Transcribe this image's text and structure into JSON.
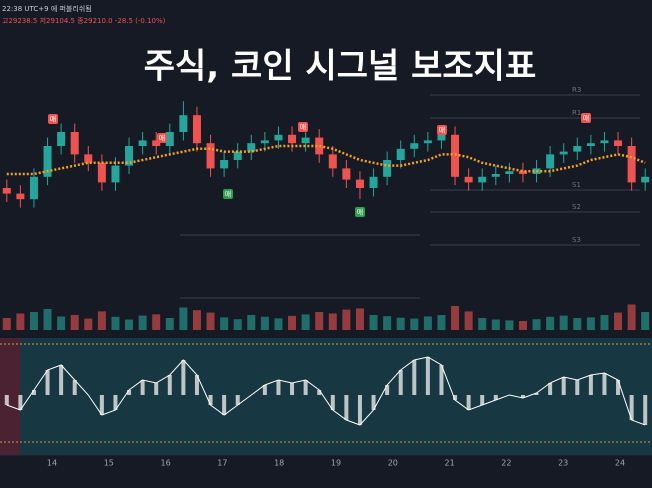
{
  "chart_data": {
    "type": "candlestick",
    "title": "주식, 코인 시그널 보조지표",
    "header": "22:38 UTC+9 에 퍼블리쉬됨",
    "ohlc_info": "고29238.5 저29104.5 종29210.0 -28.5 (-0.10%)",
    "categories": [
      "14",
      "15",
      "16",
      "17",
      "18",
      "19",
      "20",
      "21",
      "22",
      "23",
      "24"
    ],
    "level_labels": [
      "R3",
      "R1",
      "S1",
      "S2",
      "S3"
    ],
    "signal_labels": {
      "sell": "매",
      "buy": "매"
    },
    "ylim": [
      0,
      100
    ],
    "up_color": "#26a69a",
    "down_color": "#ef5350",
    "ma_color": "#f7a21b",
    "open": [
      40,
      38,
      36,
      44,
      55,
      60,
      52,
      49,
      42,
      48,
      55,
      57,
      55,
      60,
      66,
      56,
      47,
      50,
      53,
      56,
      57,
      59,
      56,
      58,
      52,
      47,
      43,
      40,
      44,
      50,
      54,
      56,
      57,
      59,
      44,
      42,
      44,
      45,
      46,
      45,
      47,
      52,
      53,
      55,
      56,
      57,
      55,
      42
    ],
    "high": [
      43,
      41,
      47,
      58,
      63,
      63,
      55,
      52,
      51,
      58,
      60,
      60,
      63,
      71,
      69,
      59,
      53,
      56,
      59,
      60,
      62,
      62,
      61,
      61,
      55,
      50,
      46,
      47,
      53,
      57,
      59,
      60,
      62,
      62,
      47,
      47,
      48,
      49,
      49,
      50,
      55,
      56,
      58,
      59,
      60,
      60,
      58,
      47
    ],
    "low": [
      35,
      33,
      33,
      41,
      52,
      49,
      46,
      39,
      39,
      45,
      52,
      52,
      52,
      57,
      53,
      44,
      44,
      47,
      50,
      53,
      54,
      53,
      53,
      49,
      44,
      40,
      36,
      37,
      41,
      47,
      51,
      53,
      54,
      41,
      39,
      39,
      41,
      42,
      42,
      42,
      44,
      49,
      50,
      52,
      53,
      52,
      39,
      39
    ],
    "close": [
      38,
      36,
      44,
      55,
      60,
      52,
      49,
      42,
      48,
      55,
      57,
      55,
      60,
      66,
      56,
      47,
      50,
      53,
      56,
      57,
      59,
      56,
      58,
      52,
      47,
      43,
      40,
      44,
      50,
      54,
      56,
      57,
      59,
      44,
      42,
      44,
      45,
      46,
      45,
      47,
      52,
      53,
      55,
      56,
      57,
      55,
      42,
      44
    ],
    "ma": [
      45,
      45,
      45,
      46,
      47,
      48,
      49,
      49,
      49,
      49,
      50,
      51,
      52,
      53,
      54,
      54,
      53,
      53,
      53,
      54,
      55,
      55,
      55,
      55,
      54,
      52,
      50,
      49,
      48,
      48,
      49,
      50,
      52,
      52,
      51,
      49,
      48,
      47,
      46,
      46,
      46,
      47,
      48,
      50,
      51,
      52,
      51,
      49
    ],
    "volume": [
      40,
      55,
      60,
      70,
      45,
      50,
      38,
      62,
      44,
      35,
      48,
      52,
      40,
      75,
      66,
      58,
      42,
      36,
      50,
      44,
      39,
      47,
      52,
      60,
      55,
      68,
      72,
      50,
      46,
      41,
      38,
      45,
      50,
      80,
      62,
      40,
      35,
      32,
      30,
      36,
      44,
      48,
      40,
      42,
      50,
      58,
      85,
      60
    ],
    "oscillator": [
      -10,
      -15,
      5,
      25,
      30,
      15,
      0,
      -20,
      -15,
      5,
      15,
      12,
      20,
      35,
      20,
      -10,
      -20,
      -10,
      0,
      10,
      15,
      12,
      15,
      5,
      -15,
      -25,
      -30,
      -15,
      10,
      25,
      35,
      38,
      30,
      -5,
      -15,
      -10,
      -5,
      0,
      -3,
      2,
      12,
      18,
      15,
      20,
      22,
      15,
      -25,
      -30
    ]
  }
}
